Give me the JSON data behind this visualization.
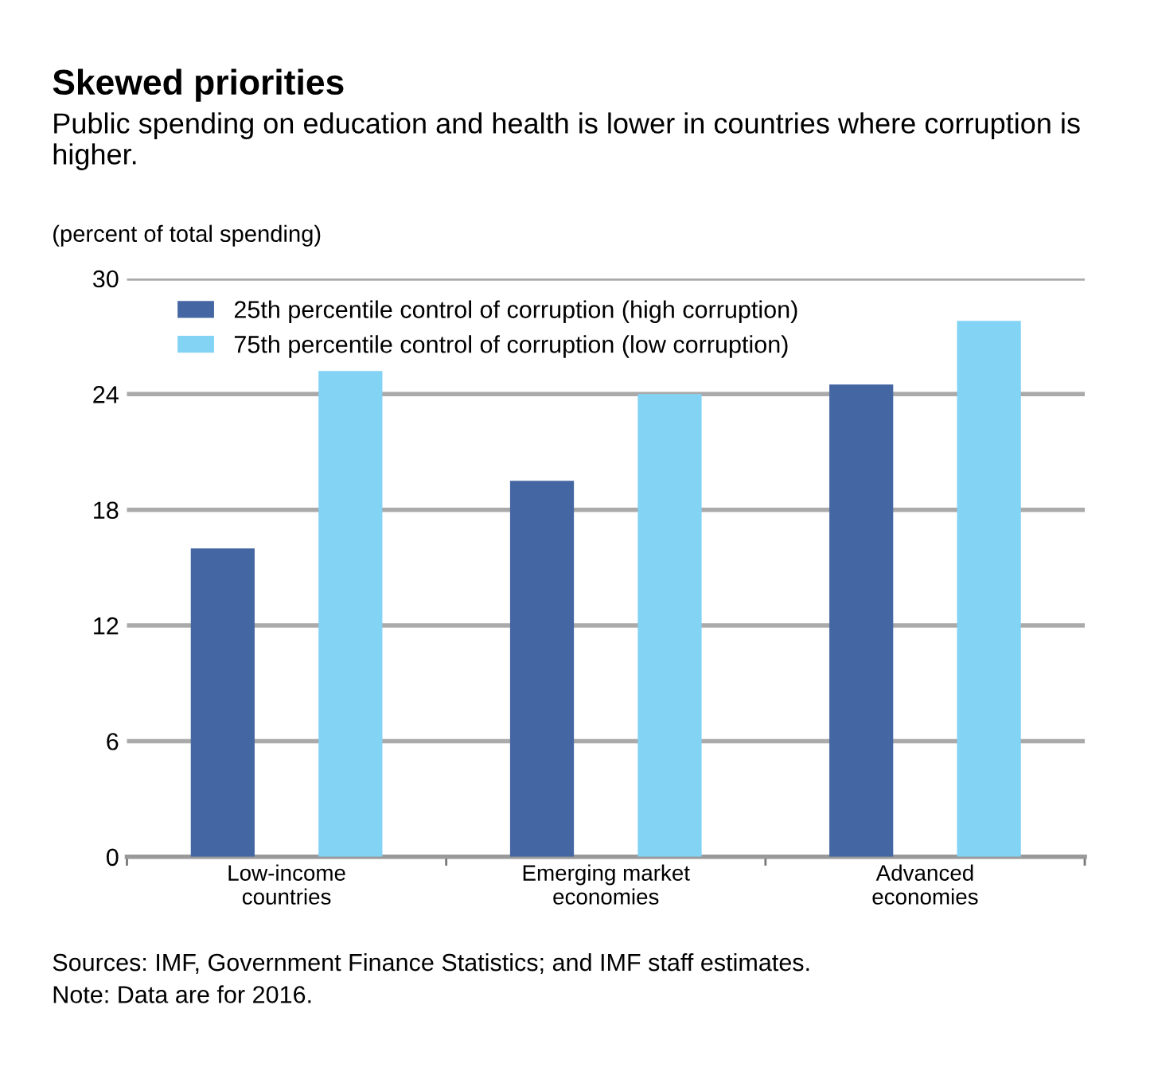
{
  "chart_data": {
    "type": "bar",
    "title": "Skewed priorities",
    "subtitle": "Public spending on education and health is lower in countries where corruption is higher.",
    "ylabel": "(percent of total spending)",
    "categories": [
      "Low-income\ncountries",
      "Emerging market\neconomies",
      "Advanced\neconomies"
    ],
    "series": [
      {
        "name": "25th percentile control of corruption (high corruption)",
        "color": "#4467a3",
        "values": [
          16.0,
          19.5,
          24.5
        ]
      },
      {
        "name": "75th percentile control of corruption (low corruption)",
        "color": "#83d3f5",
        "values": [
          25.2,
          24.0,
          27.8
        ]
      }
    ],
    "ylim": [
      0,
      30
    ],
    "yticks": [
      0,
      6,
      12,
      18,
      24,
      30
    ],
    "grid": "y",
    "legend": "top left",
    "annotations": [
      "Sources: IMF, Government Finance Statistics; and IMF staff estimates.",
      "Note: Data are for 2016."
    ]
  }
}
